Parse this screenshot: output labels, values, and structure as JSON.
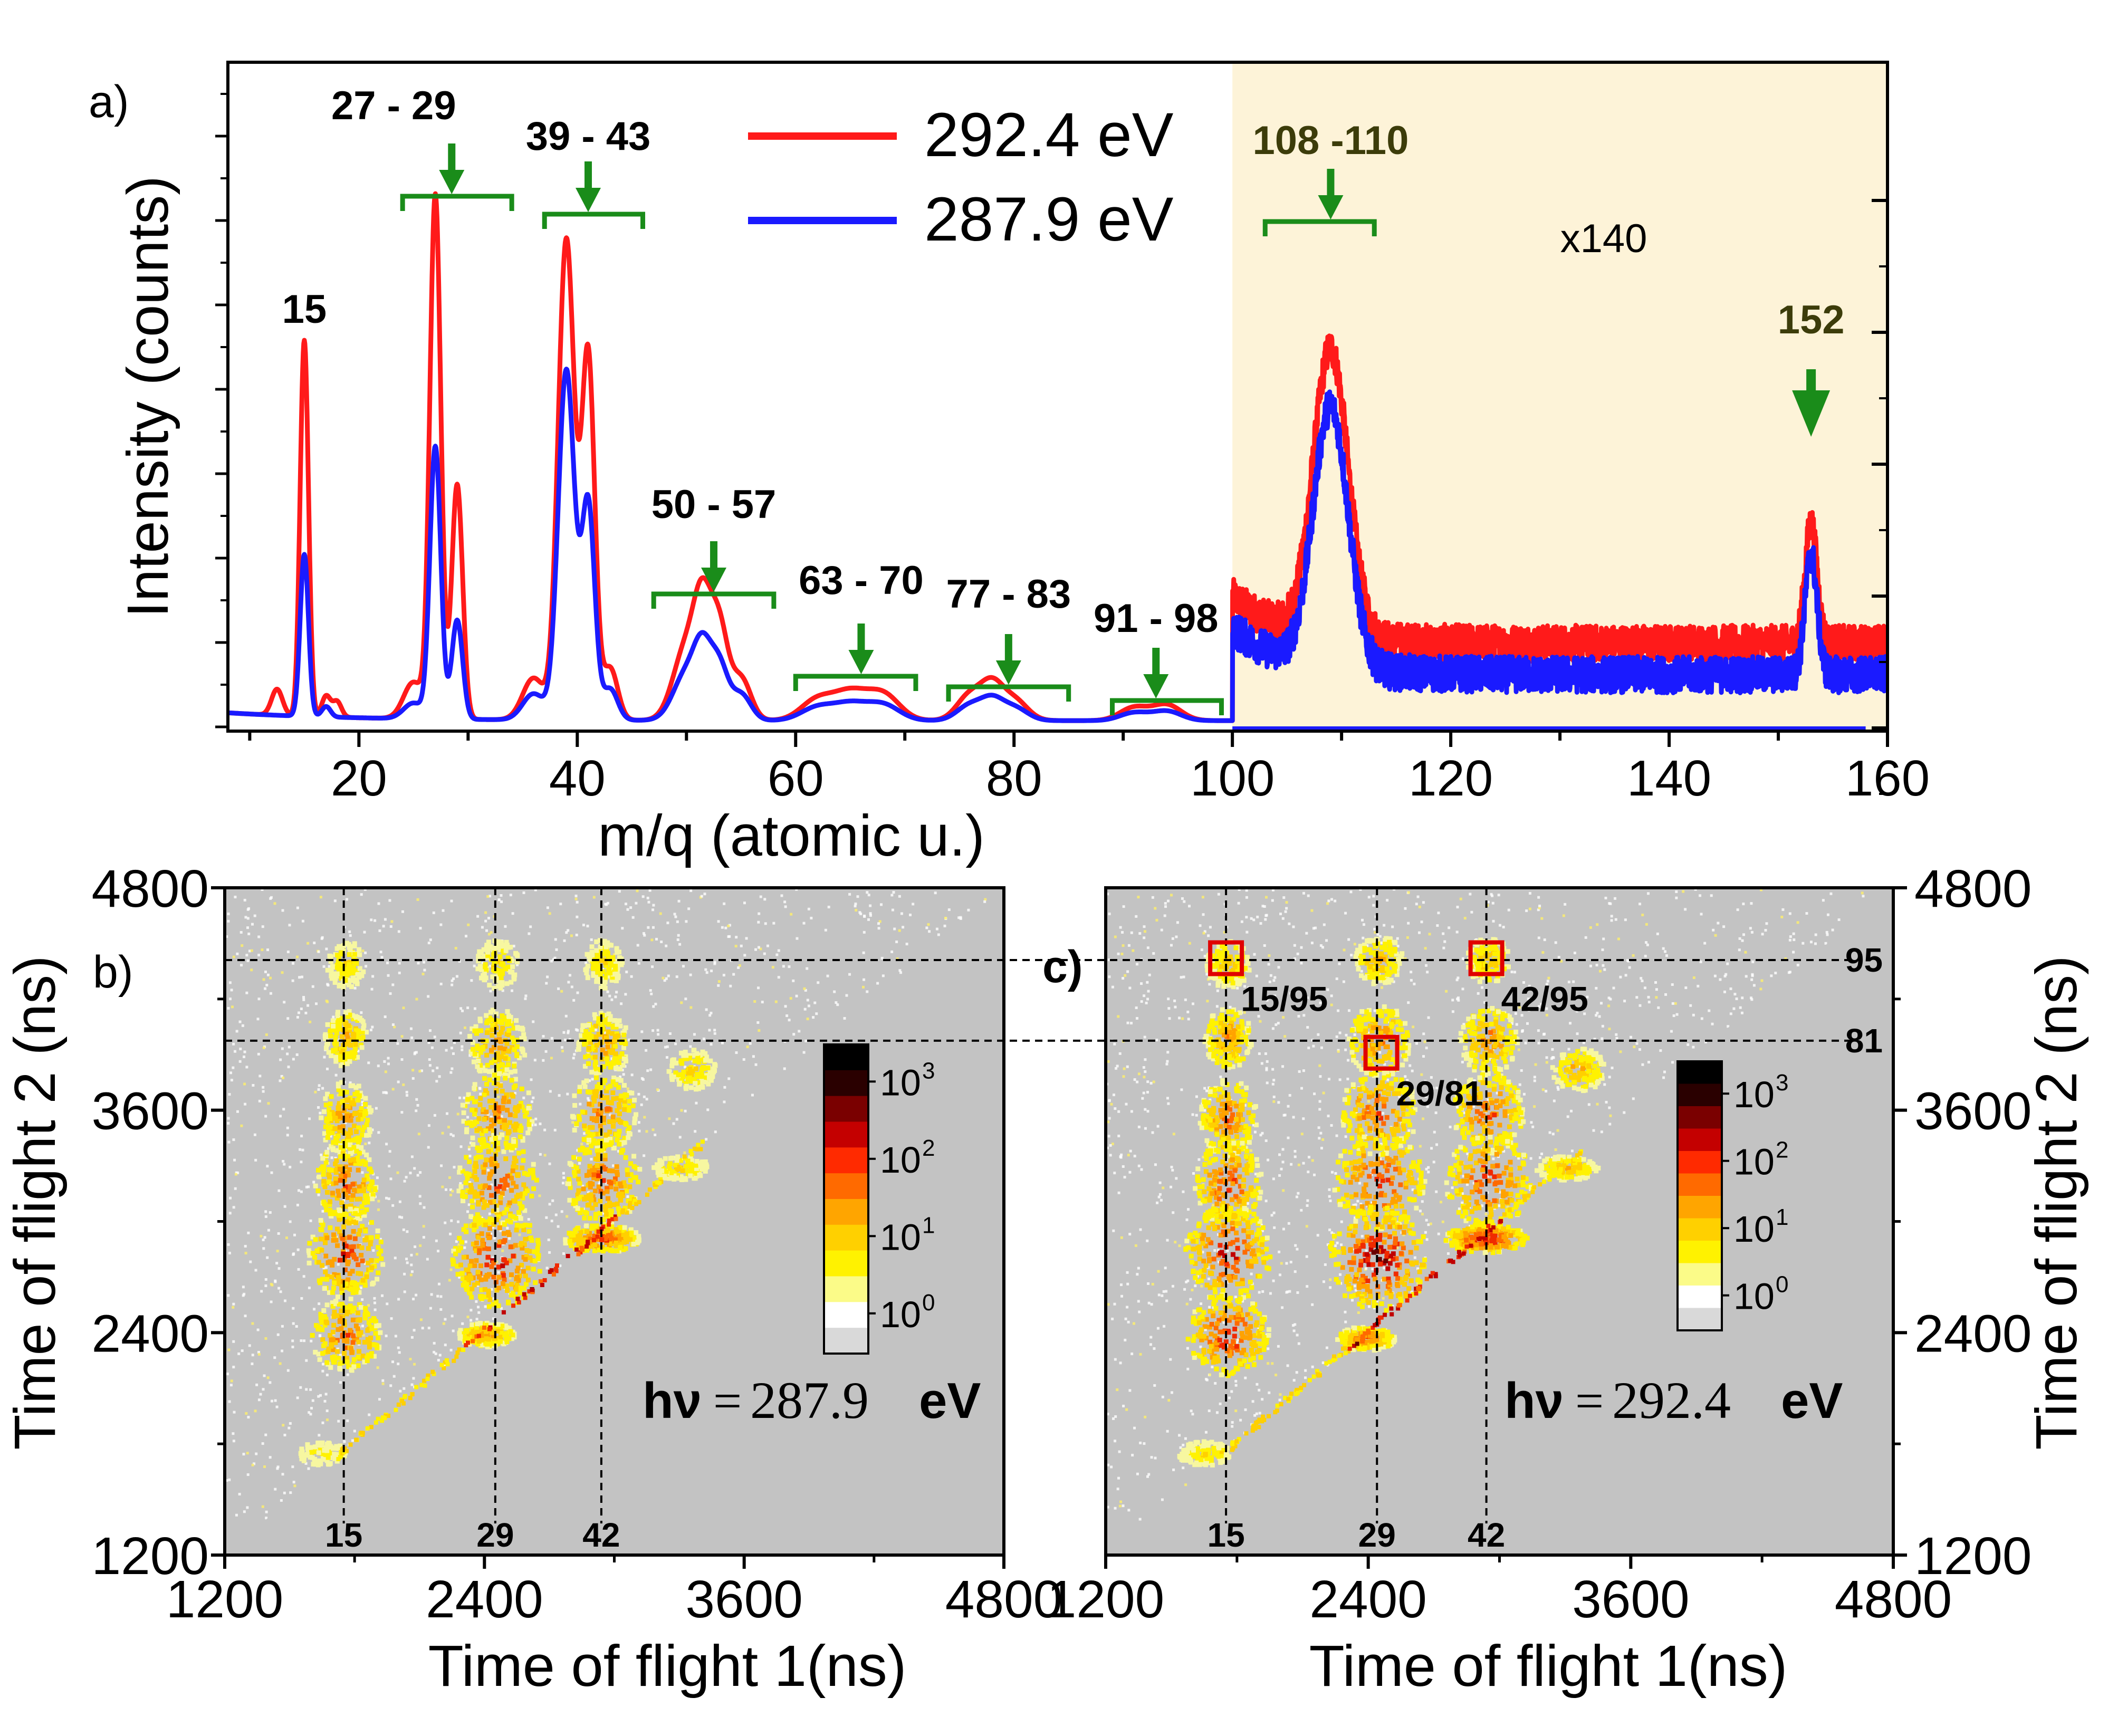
{
  "colors": {
    "red": "#ff1a1a",
    "blue": "#1a1aff",
    "green": "#1a8c1a",
    "olive": "#3c3c0a",
    "shade": "#fdf3d8",
    "map_bg": "#c3c3c3",
    "box": "#e00000"
  },
  "chart_data": [
    {
      "id": "a",
      "type": "line",
      "panel_label": "a)",
      "xlabel": "m/q (atomic u.)",
      "ylabel": "Intensity (counts)",
      "xlim": [
        8,
        160
      ],
      "x_ticks": [
        "20",
        "40",
        "60",
        "80",
        "100",
        "120",
        "140",
        "160"
      ],
      "shaded_region": {
        "x_from": 100,
        "x_to": 160,
        "label": "x140"
      },
      "legend": [
        {
          "name": "292.4 eV",
          "color": "#ff1a1a"
        },
        {
          "name": "287.9 eV",
          "color": "#1a1aff"
        }
      ],
      "series": [
        {
          "name": "292.4 eV",
          "peaks": [
            [
              12.5,
              0.05,
              0.5
            ],
            [
              15,
              0.72,
              0.38
            ],
            [
              17,
              0.04,
              0.4
            ],
            [
              18,
              0.03,
              0.4
            ],
            [
              25,
              0.07,
              0.9
            ],
            [
              27,
              1.0,
              0.5
            ],
            [
              29,
              0.45,
              0.5
            ],
            [
              36,
              0.08,
              1.0
            ],
            [
              39,
              0.92,
              0.75
            ],
            [
              41,
              0.69,
              0.6
            ],
            [
              43,
              0.1,
              0.7
            ],
            [
              50,
              0.14,
              1.2
            ],
            [
              51.5,
              0.18,
              0.8
            ],
            [
              53,
              0.17,
              0.8
            ],
            [
              55,
              0.08,
              0.9
            ],
            [
              62,
              0.04,
              1.5
            ],
            [
              65,
              0.05,
              1.5
            ],
            [
              68,
              0.05,
              1.5
            ],
            [
              76,
              0.05,
              1.2
            ],
            [
              78,
              0.06,
              1.0
            ],
            [
              80,
              0.04,
              1.2
            ],
            [
              91,
              0.025,
              1.3
            ],
            [
              94,
              0.03,
              1.3
            ]
          ],
          "region_x140": {
            "baseline": 0.16,
            "peak_108_110": 0.71,
            "peak_152": 0.39
          }
        },
        {
          "name": "287.9 eV",
          "peaks": [
            [
              15,
              0.31,
              0.38
            ],
            [
              17,
              0.02,
              0.4
            ],
            [
              25,
              0.03,
              0.9
            ],
            [
              27,
              0.52,
              0.5
            ],
            [
              29,
              0.19,
              0.5
            ],
            [
              36,
              0.05,
              1.0
            ],
            [
              39,
              0.67,
              0.75
            ],
            [
              41,
              0.41,
              0.6
            ],
            [
              43,
              0.06,
              0.7
            ],
            [
              50,
              0.09,
              1.2
            ],
            [
              51.5,
              0.11,
              0.8
            ],
            [
              53,
              0.1,
              0.8
            ],
            [
              55,
              0.05,
              0.9
            ],
            [
              62,
              0.025,
              1.5
            ],
            [
              65,
              0.03,
              1.5
            ],
            [
              68,
              0.03,
              1.5
            ],
            [
              76,
              0.03,
              1.2
            ],
            [
              78,
              0.035,
              1.0
            ],
            [
              80,
              0.025,
              1.2
            ],
            [
              91,
              0.015,
              1.3
            ],
            [
              94,
              0.018,
              1.3
            ]
          ],
          "region_x140": {
            "baseline": 0.1,
            "peak_108_110": 0.6,
            "peak_152": 0.33
          }
        }
      ],
      "annotations": [
        {
          "text": "15",
          "x": 15,
          "style": "plain"
        },
        {
          "text": "27 - 29",
          "x": 28.5,
          "bracket": [
            24,
            34
          ],
          "style": "arrow"
        },
        {
          "text": "39 - 43",
          "x": 41,
          "bracket": [
            37,
            46
          ],
          "style": "arrow"
        },
        {
          "text": "50 - 57",
          "x": 52.5,
          "bracket": [
            47,
            58
          ],
          "style": "arrow"
        },
        {
          "text": "63 - 70",
          "x": 66,
          "bracket": [
            60,
            71
          ],
          "style": "arrow"
        },
        {
          "text": "77 - 83",
          "x": 79.5,
          "bracket": [
            74,
            85
          ],
          "style": "arrow"
        },
        {
          "text": "91 - 98",
          "x": 93,
          "bracket": [
            89,
            99
          ],
          "style": "arrow"
        },
        {
          "text": "108 -110",
          "x": 109,
          "bracket": [
            103,
            113
          ],
          "style": "arrow"
        },
        {
          "text": "152",
          "x": 153,
          "style": "arrow-only"
        }
      ]
    },
    {
      "id": "b",
      "type": "heatmap",
      "panel_label": "b)",
      "xlabel": "Time of flight 1(ns)",
      "ylabel": "Time of flight 2 (ns)",
      "xlim": [
        1200,
        4800
      ],
      "ylim": [
        1200,
        4800
      ],
      "x_ticks": [
        "1200",
        "2400",
        "3600",
        "4800"
      ],
      "y_ticks": [
        "1200",
        "2400",
        "3600",
        "4800"
      ],
      "photon_energy": "287.9",
      "hv_symbol": "hν",
      "hv_equals": "=",
      "hv_unit": "eV",
      "vlines": [
        {
          "x": 1750,
          "label": "15"
        },
        {
          "x": 2450,
          "label": "29"
        },
        {
          "x": 2940,
          "label": "42"
        }
      ],
      "hlines": [
        {
          "y": 4410
        },
        {
          "y": 3975
        }
      ],
      "colorbar_ticks": [
        "10",
        "10",
        "10",
        "10"
      ],
      "colorbar_exponents": [
        "3",
        "2",
        "1",
        "0"
      ],
      "hotspots": [
        [
          1750,
          4400,
          40,
          60,
          0.3
        ],
        [
          1750,
          4000,
          45,
          70,
          0.45
        ],
        [
          1750,
          3570,
          55,
          90,
          0.55
        ],
        [
          1750,
          3220,
          65,
          100,
          0.65
        ],
        [
          1750,
          2840,
          80,
          110,
          0.75
        ],
        [
          1750,
          2400,
          75,
          90,
          0.65
        ],
        [
          1640,
          1760,
          50,
          30,
          0.2
        ],
        [
          2450,
          4400,
          45,
          60,
          0.3
        ],
        [
          2450,
          3970,
          60,
          85,
          0.5
        ],
        [
          2450,
          3600,
          75,
          100,
          0.62
        ],
        [
          2450,
          3230,
          85,
          115,
          0.7
        ],
        [
          2450,
          2810,
          95,
          120,
          0.88
        ],
        [
          2940,
          4400,
          40,
          60,
          0.3
        ],
        [
          2940,
          3970,
          55,
          80,
          0.5
        ],
        [
          2940,
          3600,
          70,
          95,
          0.6
        ],
        [
          2940,
          3230,
          80,
          110,
          0.7
        ],
        [
          3350,
          3830,
          50,
          50,
          0.35
        ],
        [
          2400,
          2400,
          60,
          30,
          0.55
        ],
        [
          2930,
          2920,
          80,
          35,
          0.75
        ],
        [
          3300,
          3300,
          60,
          30,
          0.3
        ]
      ]
    },
    {
      "id": "c",
      "type": "heatmap",
      "panel_label": "c)",
      "xlabel": "Time of flight 1(ns)",
      "ylabel": "Time of flight 2 (ns)",
      "xlim": [
        1200,
        4800
      ],
      "ylim": [
        1200,
        4800
      ],
      "x_ticks": [
        "1200",
        "2400",
        "3600",
        "4800"
      ],
      "y_ticks": [
        "1200",
        "2400",
        "3600",
        "4800"
      ],
      "photon_energy": "292.4",
      "hv_symbol": "hν",
      "hv_equals": "=",
      "hv_unit": "eV",
      "vlines": [
        {
          "x": 1750,
          "label": "15"
        },
        {
          "x": 2440,
          "label": "29"
        },
        {
          "x": 2940,
          "label": "42"
        }
      ],
      "hlines": [
        {
          "y": 4410,
          "label": "95"
        },
        {
          "y": 3975,
          "label": "81"
        }
      ],
      "boxes": [
        {
          "x": 1750,
          "y": 4420,
          "label": "15/95"
        },
        {
          "x": 2460,
          "y": 3910,
          "label": "29/81"
        },
        {
          "x": 2940,
          "y": 4420,
          "label": "42/95"
        }
      ],
      "colorbar_ticks": [
        "10",
        "10",
        "10",
        "10"
      ],
      "colorbar_exponents": [
        "3",
        "2",
        "1",
        "0"
      ],
      "hotspots": [
        [
          1750,
          4400,
          45,
          60,
          0.4
        ],
        [
          1750,
          4000,
          50,
          75,
          0.55
        ],
        [
          1750,
          3570,
          60,
          95,
          0.65
        ],
        [
          1750,
          3220,
          70,
          110,
          0.75
        ],
        [
          1750,
          2840,
          90,
          120,
          0.88
        ],
        [
          1750,
          2400,
          85,
          100,
          0.85
        ],
        [
          1640,
          1760,
          55,
          30,
          0.3
        ],
        [
          2440,
          4420,
          50,
          60,
          0.45
        ],
        [
          2440,
          3990,
          65,
          90,
          0.6
        ],
        [
          2440,
          3600,
          80,
          105,
          0.72
        ],
        [
          2440,
          3230,
          95,
          120,
          0.82
        ],
        [
          2440,
          2810,
          105,
          130,
          0.98
        ],
        [
          2940,
          4420,
          45,
          60,
          0.4
        ],
        [
          2940,
          3990,
          60,
          85,
          0.58
        ],
        [
          2940,
          3600,
          75,
          100,
          0.7
        ],
        [
          2940,
          3230,
          90,
          115,
          0.8
        ],
        [
          3350,
          3830,
          55,
          55,
          0.45
        ],
        [
          2380,
          2380,
          60,
          30,
          0.7
        ],
        [
          2930,
          2920,
          85,
          35,
          0.92
        ],
        [
          3300,
          3300,
          65,
          30,
          0.45
        ]
      ]
    }
  ]
}
